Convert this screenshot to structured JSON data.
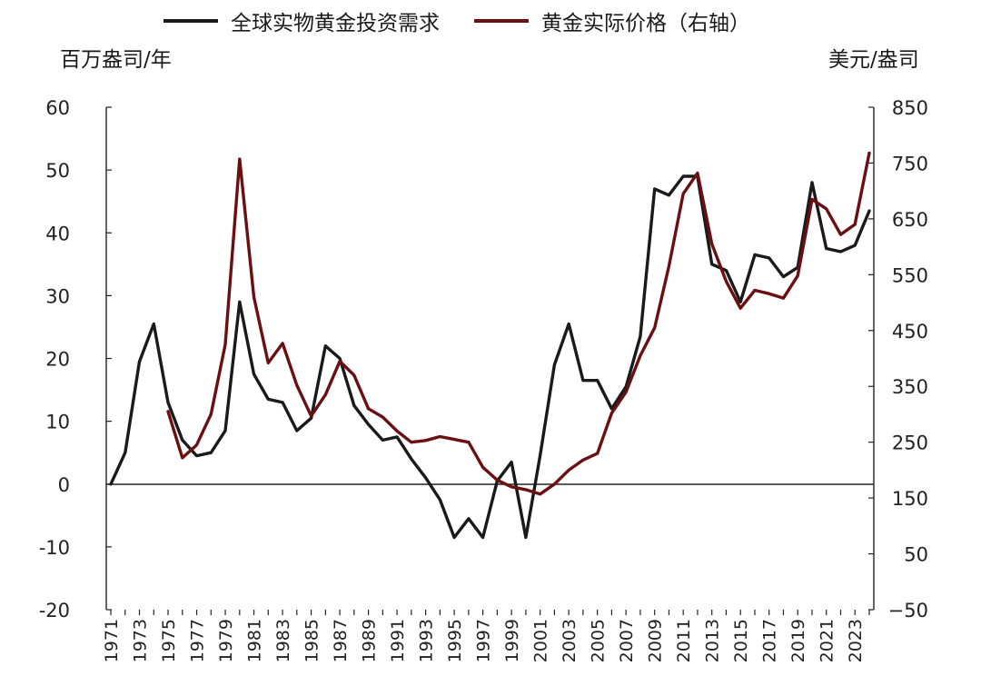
{
  "chart_data": {
    "type": "line",
    "legend_position": "top",
    "left_unit": "百万盎司/年",
    "right_unit": "美元/盎司",
    "left_ylim": [
      -20,
      60
    ],
    "right_ylim": [
      -50,
      850
    ],
    "left_ticks": [
      "60",
      "50",
      "40",
      "30",
      "20",
      "10",
      "0",
      "-10",
      "-20"
    ],
    "right_ticks": [
      "850",
      "750",
      "650",
      "550",
      "450",
      "350",
      "250",
      "150",
      "50",
      "−50"
    ],
    "x_ticks": [
      "1971",
      "1973",
      "1975",
      "1977",
      "1979",
      "1981",
      "1983",
      "1985",
      "1987",
      "1989",
      "1991",
      "1993",
      "1995",
      "1997",
      "1999",
      "2001",
      "2003",
      "2005",
      "2007",
      "2009",
      "2011",
      "2013",
      "2015",
      "2017",
      "2019",
      "2021",
      "2023"
    ],
    "series": [
      {
        "name": "全球实物黄金投资需求",
        "color": "#1a1a1a",
        "axis": "left",
        "x": [
          1971,
          1972,
          1973,
          1974,
          1975,
          1976,
          1977,
          1978,
          1979,
          1980,
          1981,
          1982,
          1983,
          1984,
          1985,
          1986,
          1987,
          1988,
          1989,
          1990,
          1991,
          1992,
          1993,
          1994,
          1995,
          1996,
          1997,
          1998,
          1999,
          2000,
          2001,
          2002,
          2003,
          2004,
          2005,
          2006,
          2007,
          2008,
          2009,
          2010,
          2011,
          2012,
          2013,
          2014,
          2015,
          2016,
          2017,
          2018,
          2019,
          2020,
          2021,
          2022,
          2023,
          2024
        ],
        "values": [
          0,
          5,
          19.5,
          25.5,
          13,
          7,
          4.5,
          5,
          8.5,
          29,
          17.5,
          13.5,
          13,
          8.5,
          10.5,
          22,
          20,
          12.5,
          9.5,
          7,
          7.5,
          4,
          1,
          -2.5,
          -8.5,
          -5.5,
          -8.5,
          0.5,
          3.5,
          -8.5,
          4.5,
          19,
          25.5,
          16.5,
          16.5,
          12,
          15.5,
          23.5,
          47,
          46,
          49,
          49,
          35,
          34,
          29,
          36.5,
          36,
          33,
          34.5,
          48,
          37.5,
          37,
          38,
          43.5
        ]
      },
      {
        "name": "黄金实际价格（右轴）",
        "color": "#6b0f12",
        "axis": "right",
        "x": [
          1975,
          1976,
          1977,
          1978,
          1979,
          1980,
          1981,
          1982,
          1983,
          1984,
          1985,
          1986,
          1987,
          1988,
          1989,
          1990,
          1991,
          1992,
          1993,
          1994,
          1995,
          1996,
          1997,
          1998,
          1999,
          2000,
          2001,
          2002,
          2003,
          2004,
          2005,
          2006,
          2007,
          2008,
          2009,
          2010,
          2011,
          2012,
          2013,
          2014,
          2015,
          2016,
          2017,
          2018,
          2019,
          2020,
          2021,
          2022,
          2023,
          2024
        ],
        "values": [
          305,
          222,
          245,
          300,
          425,
          757,
          510,
          392,
          427,
          352,
          297,
          335,
          395,
          370,
          310,
          295,
          270,
          250,
          253,
          260,
          255,
          250,
          205,
          182,
          170,
          165,
          157,
          175,
          200,
          218,
          230,
          302,
          340,
          405,
          455,
          565,
          695,
          732,
          605,
          538,
          490,
          522,
          516,
          508,
          548,
          685,
          668,
          622,
          640,
          768
        ]
      }
    ]
  }
}
